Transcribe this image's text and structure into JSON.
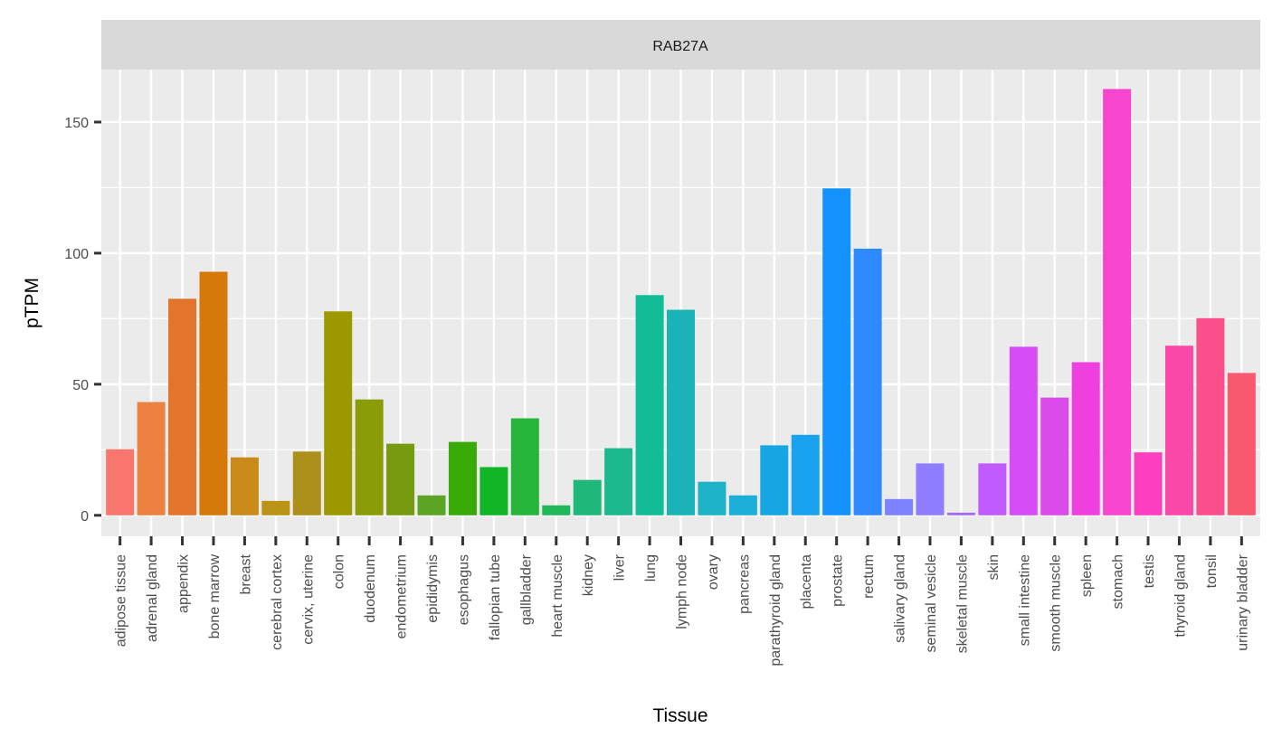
{
  "chart_data": {
    "type": "bar",
    "facet_title": "RAB27A",
    "xlabel": "Tissue",
    "ylabel": "pTPM",
    "ylim": [
      -8,
      170
    ],
    "yticks": [
      0,
      50,
      100,
      150
    ],
    "grid": true,
    "legend": "none",
    "categories": [
      "adipose tissue",
      "adrenal gland",
      "appendix",
      "bone marrow",
      "breast",
      "cerebral cortex",
      "cervix, uterine",
      "colon",
      "duodenum",
      "endometrium",
      "epididymis",
      "esophagus",
      "fallopian tube",
      "gallbladder",
      "heart muscle",
      "kidney",
      "liver",
      "lung",
      "lymph node",
      "ovary",
      "pancreas",
      "parathyroid gland",
      "placenta",
      "prostate",
      "rectum",
      "salivary gland",
      "seminal vesicle",
      "skeletal muscle",
      "skin",
      "small intestine",
      "smooth muscle",
      "spleen",
      "stomach",
      "testis",
      "thyroid gland",
      "tonsil",
      "urinary bladder"
    ],
    "values": [
      25.2,
      43.2,
      82.6,
      92.9,
      22.1,
      5.5,
      24.3,
      77.8,
      44.2,
      27.3,
      7.6,
      28.0,
      18.4,
      37.0,
      3.8,
      13.5,
      25.6,
      84.0,
      78.4,
      12.8,
      7.6,
      26.7,
      30.7,
      124.7,
      101.7,
      6.2,
      19.8,
      1.0,
      19.8,
      64.3,
      44.9,
      58.4,
      162.6,
      24.0,
      64.7,
      75.2,
      54.3
    ],
    "colors": [
      "#F8766D",
      "#EC8240",
      "#E2742C",
      "#D7780A",
      "#C98A19",
      "#BA9214",
      "#AC9019",
      "#9C9900",
      "#8A9C07",
      "#779B10",
      "#5CA423",
      "#38AA07",
      "#12B526",
      "#27B53A",
      "#1FB85B",
      "#1FB87A",
      "#1DB88E",
      "#12BC96",
      "#1BB3B5",
      "#1DB4C7",
      "#1CB0D9",
      "#16A6E4",
      "#1AA2EF",
      "#1493FF",
      "#2E8BFF",
      "#7D83FF",
      "#8F7CFF",
      "#A569FF",
      "#C25BFF",
      "#D64DF6",
      "#DB4AEA",
      "#EE40DF",
      "#F745CF",
      "#FC3EC1",
      "#FA47A8",
      "#FB4F8C",
      "#F8596F"
    ]
  }
}
